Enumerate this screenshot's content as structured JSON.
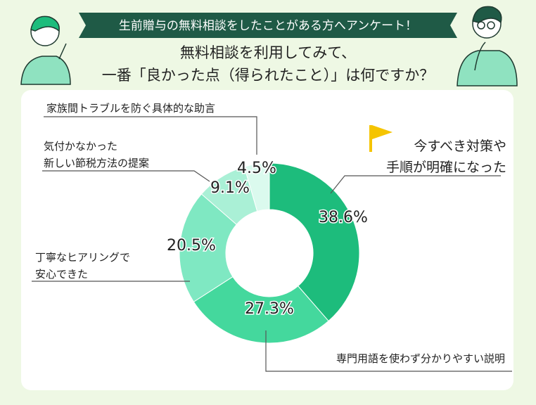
{
  "chart_data": {
    "type": "donut",
    "title": "生前贈与の無料相談をしたことがある方へアンケート！",
    "subtitle": "無料相談を利用してみて、\n一番「良かった点（得られたこと）」は何ですか？",
    "categories": [
      "今すべき対策や\n手順が明確になった",
      "専門用語を使わず分かりやすい説明",
      "丁寧なヒアリングで\n安心できた",
      "気付かなかった\n新しい節税方法の提案",
      "家族間トラブルを防ぐ具体的な助言"
    ],
    "values": [
      38.6,
      27.3,
      20.5,
      9.1,
      4.5
    ],
    "value_labels": [
      "38.6%",
      "27.3%",
      "20.5%",
      "9.1%",
      "4.5%"
    ],
    "colors": [
      "#1dbc7c",
      "#44d89d",
      "#7fe8c2",
      "#aaf0d6",
      "#dbfaee"
    ]
  }
}
